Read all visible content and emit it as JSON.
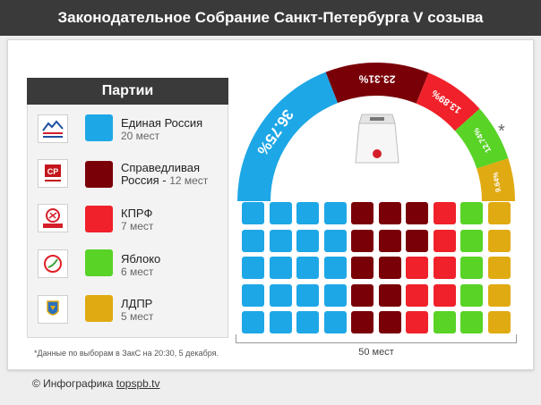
{
  "title": "Законодательное Собрание Санкт-Петербурга V созыва",
  "legend_title": "Партии",
  "colors": {
    "er": "#1ea7e6",
    "sr": "#7a0008",
    "kprf": "#f0212a",
    "yabloko": "#58d326",
    "ldpr": "#e0aa12"
  },
  "parties": [
    {
      "key": "er",
      "name": "Единая Россия",
      "seats_text": "20 мест",
      "logo_icon": "united-russia-logo-icon"
    },
    {
      "key": "sr",
      "name": "Справедливая",
      "name2": "Россия - ",
      "seats_text": "12 мест",
      "logo_icon": "just-russia-logo-icon"
    },
    {
      "key": "kprf",
      "name": "КПРФ",
      "seats_text": "7 мест",
      "logo_icon": "kprf-logo-icon"
    },
    {
      "key": "yabloko",
      "name": "Яблоко",
      "seats_text": "6 мест",
      "logo_icon": "yabloko-logo-icon"
    },
    {
      "key": "ldpr",
      "name": "ЛДПР",
      "seats_text": "5 мест",
      "logo_icon": "ldpr-logo-icon"
    }
  ],
  "chart_data": {
    "type": "pie",
    "categories": [
      "Единая Россия",
      "Справедливая Россия",
      "КПРФ",
      "Яблоко",
      "ЛДПР"
    ],
    "values": [
      36.75,
      23.31,
      13.89,
      12.74,
      9.64
    ],
    "labels": [
      "36.75%",
      "23.31%",
      "13.89%",
      "12.74%",
      "9.64%"
    ],
    "seats": [
      20,
      12,
      7,
      6,
      5
    ],
    "total_seats_label": "50 мест",
    "asterisk": "*"
  },
  "footnote": "*Данные по выборам в ЗакС на 20:30, 5 декабря.",
  "credit": {
    "prefix": "© Инфографика ",
    "site": "topspb.tv"
  }
}
